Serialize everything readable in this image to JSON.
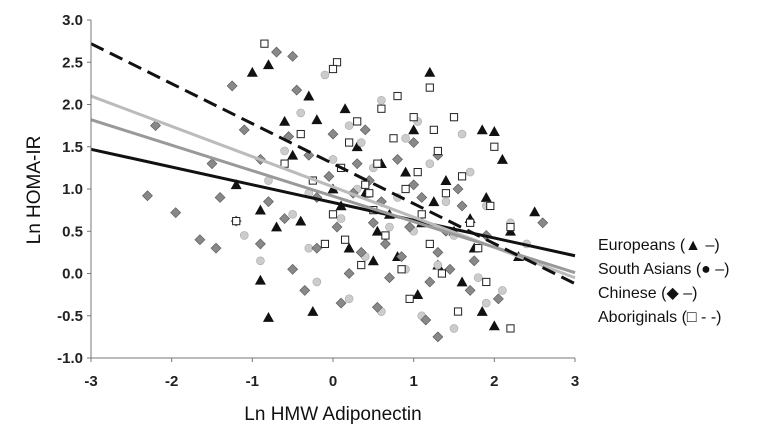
{
  "chart_data": {
    "type": "scatter",
    "title": "",
    "xlabel": "Ln HMW Adiponectin",
    "ylabel": "Ln HOMA-IR",
    "xlim": [
      -3,
      3
    ],
    "ylim": [
      -1.0,
      3.0
    ],
    "x_ticks": [
      "-3",
      "-2",
      "-1",
      "0",
      "1",
      "2",
      "3"
    ],
    "y_ticks": [
      "-1.0",
      "-0.5",
      "0.0",
      "0.5",
      "1.0",
      "1.5",
      "2.0",
      "2.5",
      "3.0"
    ],
    "grid": false,
    "legend_position": "right",
    "series": [
      {
        "name": "Europeans (▲ –)",
        "marker": "triangle",
        "color": "#111111",
        "line_color": "#111111",
        "line_dash": "solid",
        "fit": [
          [
            -3,
            1.47
          ],
          [
            3,
            0.21
          ]
        ],
        "points": [
          [
            -1.0,
            2.38
          ],
          [
            -0.8,
            2.47
          ],
          [
            -0.3,
            2.1
          ],
          [
            1.2,
            2.38
          ],
          [
            -0.6,
            1.8
          ],
          [
            -0.2,
            1.82
          ],
          [
            0.15,
            1.95
          ],
          [
            1.85,
            1.7
          ],
          [
            2.0,
            1.68
          ],
          [
            1.0,
            1.7
          ],
          [
            -0.5,
            1.4
          ],
          [
            0.3,
            1.5
          ],
          [
            0.6,
            1.3
          ],
          [
            0.9,
            1.2
          ],
          [
            1.4,
            1.1
          ],
          [
            -1.2,
            1.05
          ],
          [
            -0.9,
            0.75
          ],
          [
            -0.7,
            0.55
          ],
          [
            -0.4,
            0.62
          ],
          [
            0.1,
            0.8
          ],
          [
            0.4,
            0.95
          ],
          [
            0.7,
            0.7
          ],
          [
            1.1,
            0.6
          ],
          [
            1.5,
            0.5
          ],
          [
            1.7,
            0.65
          ],
          [
            1.9,
            0.9
          ],
          [
            2.1,
            1.35
          ],
          [
            2.2,
            0.5
          ],
          [
            2.5,
            0.73
          ],
          [
            0.2,
            0.3
          ],
          [
            0.5,
            0.15
          ],
          [
            0.8,
            0.2
          ],
          [
            1.3,
            0.1
          ],
          [
            1.6,
            -0.1
          ],
          [
            1.85,
            -0.45
          ],
          [
            2.0,
            -0.62
          ],
          [
            -0.9,
            -0.08
          ],
          [
            -0.8,
            -0.52
          ],
          [
            -0.25,
            -0.45
          ],
          [
            1.05,
            -0.25
          ],
          [
            0.55,
            0.5
          ],
          [
            1.25,
            0.85
          ],
          [
            0.0,
            1.0
          ],
          [
            1.75,
            0.3
          ],
          [
            2.3,
            0.2
          ]
        ]
      },
      {
        "name": "South Asians (● –)",
        "marker": "circle",
        "color": "#cccccc",
        "line_color": "#bbbbbb",
        "line_dash": "solid",
        "fit": [
          [
            -3,
            2.1
          ],
          [
            3,
            -0.05
          ]
        ],
        "points": [
          [
            -0.1,
            2.35
          ],
          [
            0.6,
            2.05
          ],
          [
            -0.4,
            1.9
          ],
          [
            0.2,
            1.75
          ],
          [
            0.9,
            1.6
          ],
          [
            1.6,
            1.65
          ],
          [
            -0.6,
            1.45
          ],
          [
            0.0,
            1.35
          ],
          [
            0.5,
            1.25
          ],
          [
            1.2,
            1.3
          ],
          [
            1.7,
            1.2
          ],
          [
            -0.8,
            1.1
          ],
          [
            -0.3,
            0.95
          ],
          [
            0.3,
            1.0
          ],
          [
            0.8,
            0.9
          ],
          [
            1.4,
            0.85
          ],
          [
            1.9,
            0.8
          ],
          [
            -1.1,
            0.45
          ],
          [
            -0.5,
            0.7
          ],
          [
            0.1,
            0.65
          ],
          [
            0.7,
            0.55
          ],
          [
            1.0,
            0.5
          ],
          [
            1.5,
            0.45
          ],
          [
            2.2,
            0.6
          ],
          [
            2.4,
            0.35
          ],
          [
            -0.9,
            0.15
          ],
          [
            -0.3,
            0.3
          ],
          [
            0.4,
            0.2
          ],
          [
            0.9,
            0.05
          ],
          [
            1.3,
            0.1
          ],
          [
            1.8,
            -0.05
          ],
          [
            2.1,
            -0.2
          ],
          [
            0.2,
            -0.3
          ],
          [
            0.6,
            -0.45
          ],
          [
            1.1,
            -0.5
          ],
          [
            1.5,
            -0.65
          ],
          [
            1.9,
            -0.35
          ],
          [
            -0.2,
            -0.1
          ],
          [
            0.35,
            1.55
          ],
          [
            1.05,
            1.8
          ]
        ]
      },
      {
        "name": "Chinese (◆ –)",
        "marker": "diamond",
        "color": "#888888",
        "line_color": "#999999",
        "line_dash": "solid",
        "fit": [
          [
            -3,
            1.82
          ],
          [
            3,
            0.01
          ]
        ],
        "points": [
          [
            -0.7,
            2.62
          ],
          [
            -0.5,
            2.57
          ],
          [
            -1.25,
            2.22
          ],
          [
            -0.45,
            2.17
          ],
          [
            -2.2,
            1.75
          ],
          [
            -1.1,
            1.7
          ],
          [
            -0.55,
            1.62
          ],
          [
            0.0,
            1.65
          ],
          [
            0.4,
            1.7
          ],
          [
            1.0,
            1.55
          ],
          [
            -1.5,
            1.3
          ],
          [
            -0.9,
            1.35
          ],
          [
            -0.3,
            1.4
          ],
          [
            0.3,
            1.3
          ],
          [
            0.8,
            1.35
          ],
          [
            1.3,
            1.4
          ],
          [
            -2.3,
            0.92
          ],
          [
            -1.4,
            0.9
          ],
          [
            -0.8,
            0.85
          ],
          [
            -0.2,
            0.9
          ],
          [
            0.25,
            0.95
          ],
          [
            0.6,
            0.85
          ],
          [
            1.1,
            0.9
          ],
          [
            1.6,
            0.8
          ],
          [
            -1.95,
            0.72
          ],
          [
            -1.2,
            0.62
          ],
          [
            -0.6,
            0.65
          ],
          [
            0.05,
            0.55
          ],
          [
            0.5,
            0.6
          ],
          [
            0.95,
            0.55
          ],
          [
            1.4,
            0.5
          ],
          [
            1.9,
            0.45
          ],
          [
            -1.65,
            0.4
          ],
          [
            -1.45,
            0.3
          ],
          [
            -0.9,
            0.35
          ],
          [
            -0.2,
            0.3
          ],
          [
            0.35,
            0.25
          ],
          [
            0.85,
            0.2
          ],
          [
            1.3,
            0.25
          ],
          [
            1.75,
            0.15
          ],
          [
            -0.5,
            0.05
          ],
          [
            0.2,
            0.0
          ],
          [
            0.7,
            -0.05
          ],
          [
            1.2,
            -0.1
          ],
          [
            1.7,
            -0.2
          ],
          [
            2.05,
            -0.3
          ],
          [
            0.1,
            -0.35
          ],
          [
            0.55,
            -0.4
          ],
          [
            1.15,
            -0.55
          ],
          [
            1.3,
            -0.75
          ],
          [
            2.6,
            0.6
          ],
          [
            -0.05,
            1.15
          ],
          [
            0.45,
            1.1
          ],
          [
            1.0,
            1.05
          ],
          [
            1.55,
            1.0
          ],
          [
            0.65,
            0.35
          ],
          [
            1.45,
            0.05
          ],
          [
            -0.35,
            -0.2
          ]
        ]
      },
      {
        "name": "Aboriginals (□ - -)",
        "marker": "square",
        "color": "#ffffff",
        "line_color": "#111111",
        "line_dash": "dashed",
        "fit": [
          [
            -3,
            2.72
          ],
          [
            3,
            -0.12
          ]
        ],
        "points": [
          [
            -0.85,
            2.72
          ],
          [
            0.05,
            2.5
          ],
          [
            0.0,
            2.42
          ],
          [
            0.8,
            2.1
          ],
          [
            1.2,
            2.2
          ],
          [
            0.6,
            1.95
          ],
          [
            1.0,
            1.85
          ],
          [
            0.3,
            1.8
          ],
          [
            1.5,
            1.85
          ],
          [
            -0.4,
            1.65
          ],
          [
            0.2,
            1.55
          ],
          [
            0.75,
            1.6
          ],
          [
            1.25,
            1.7
          ],
          [
            2.0,
            1.5
          ],
          [
            -0.6,
            1.3
          ],
          [
            0.1,
            1.25
          ],
          [
            0.55,
            1.3
          ],
          [
            1.05,
            1.2
          ],
          [
            1.6,
            1.15
          ],
          [
            -0.25,
            1.1
          ],
          [
            0.4,
            1.05
          ],
          [
            0.9,
            1.0
          ],
          [
            1.4,
            0.95
          ],
          [
            1.95,
            0.8
          ],
          [
            -1.2,
            0.62
          ],
          [
            0.0,
            0.7
          ],
          [
            0.5,
            0.75
          ],
          [
            1.1,
            0.7
          ],
          [
            1.7,
            0.6
          ],
          [
            2.2,
            0.55
          ],
          [
            0.15,
            0.4
          ],
          [
            0.65,
            0.45
          ],
          [
            1.2,
            0.35
          ],
          [
            1.8,
            0.3
          ],
          [
            0.35,
            0.1
          ],
          [
            0.85,
            0.05
          ],
          [
            1.35,
            0.0
          ],
          [
            1.9,
            -0.1
          ],
          [
            0.95,
            -0.3
          ],
          [
            1.55,
            -0.45
          ],
          [
            2.2,
            -0.65
          ],
          [
            0.45,
            0.95
          ],
          [
            1.3,
            1.45
          ],
          [
            -0.1,
            0.35
          ]
        ]
      }
    ]
  }
}
